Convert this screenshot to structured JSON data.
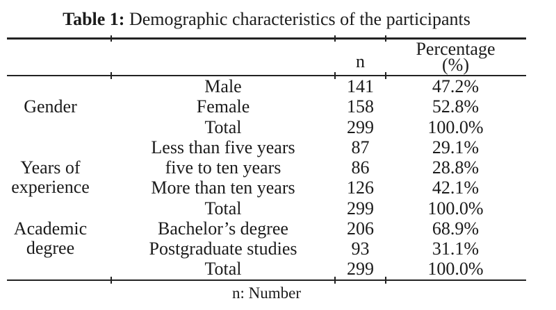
{
  "title": {
    "label": "Table 1:",
    "text": " Demographic characteristics of the participants"
  },
  "header": {
    "n": "n",
    "percentage_line1": "Percentage",
    "percentage_line2": "(%)"
  },
  "sections": [
    {
      "group_lines": [
        "Gender"
      ],
      "rows": [
        {
          "category": "Male",
          "n": "141",
          "percentage": "47.2%"
        },
        {
          "category": "Female",
          "n": "158",
          "percentage": "52.8%"
        },
        {
          "category": "Total",
          "n": "299",
          "percentage": "100.0%"
        }
      ]
    },
    {
      "group_lines": [
        "Years of",
        "experience"
      ],
      "rows": [
        {
          "category": "Less than five years",
          "n": "87",
          "percentage": "29.1%"
        },
        {
          "category": "five to ten years",
          "n": "86",
          "percentage": "28.8%"
        },
        {
          "category": "More than ten years",
          "n": "126",
          "percentage": "42.1%"
        },
        {
          "category": "Total",
          "n": "299",
          "percentage": "100.0%"
        }
      ]
    },
    {
      "group_lines": [
        "Academic",
        "degree"
      ],
      "rows": [
        {
          "category": "Bachelor’s degree",
          "n": "206",
          "percentage": "68.9%"
        },
        {
          "category": "Postgraduate studies",
          "n": "93",
          "percentage": "31.1%"
        },
        {
          "category": "Total",
          "n": "299",
          "percentage": "100.0%"
        }
      ]
    }
  ],
  "footnote": "n: Number",
  "colors": {
    "background": "#ffffff",
    "text": "#1b1b1b",
    "rule": "#222222"
  }
}
